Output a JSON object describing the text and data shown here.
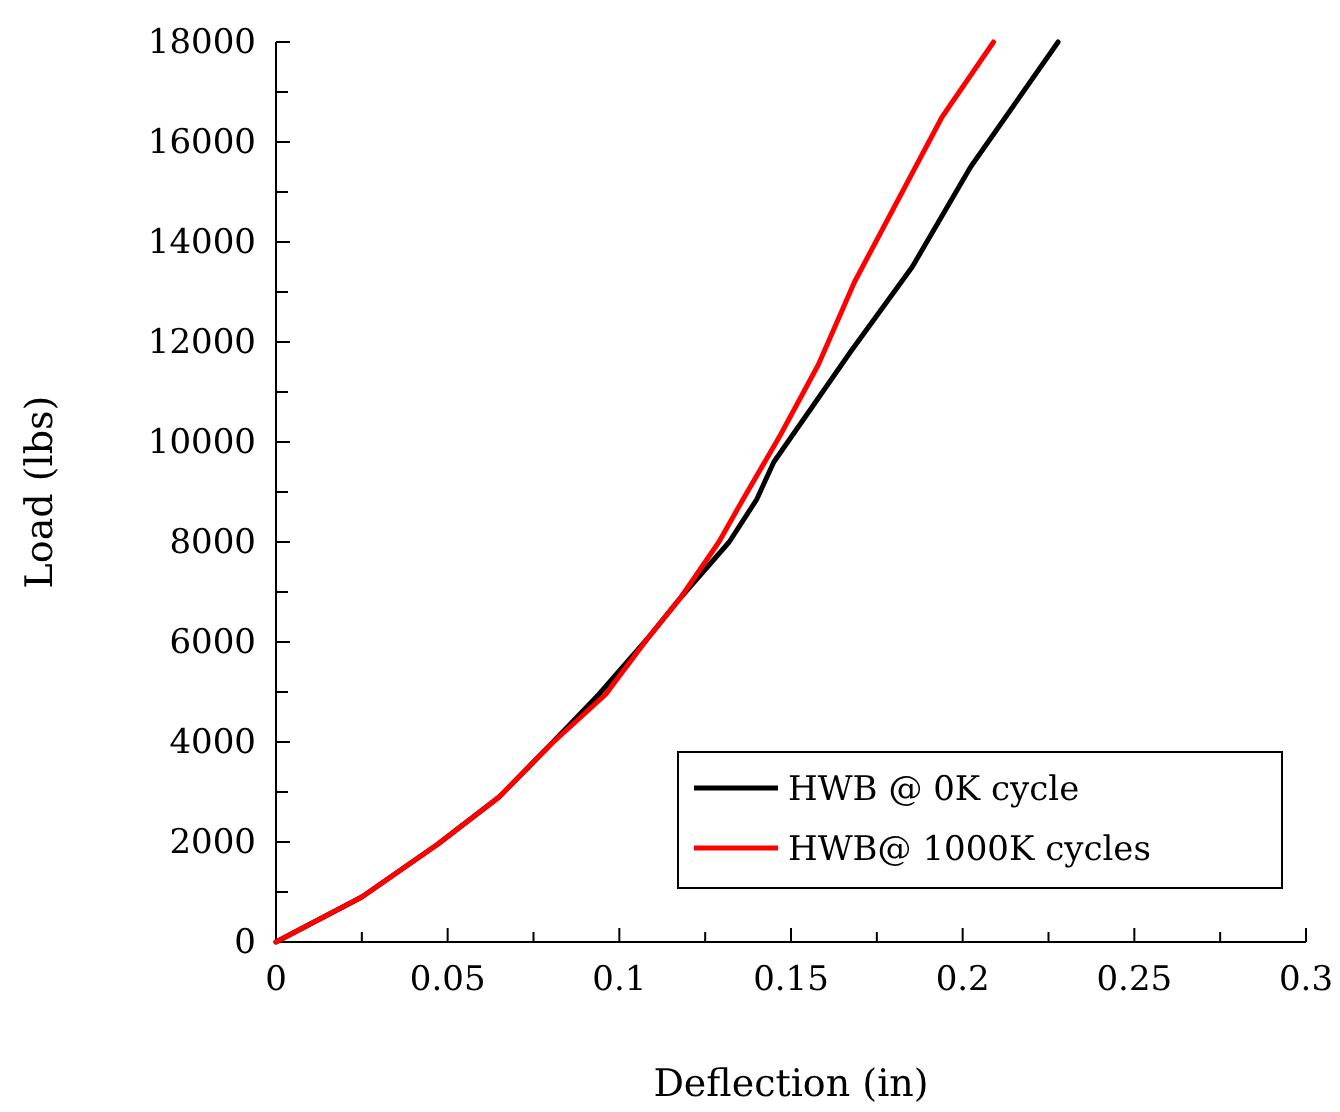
{
  "chart_data": {
    "type": "line",
    "xlabel": "Deflection (in)",
    "ylabel": "Load (lbs)",
    "xlim": [
      0,
      0.3
    ],
    "xticks": [
      0,
      0.05,
      0.1,
      0.15,
      0.2,
      0.25,
      0.3
    ],
    "ylim": [
      0,
      18000
    ],
    "yticks": [
      0,
      2000,
      4000,
      6000,
      8000,
      10000,
      12000,
      14000,
      16000,
      18000
    ],
    "legend": "bottom right",
    "grid": false,
    "marker": "none",
    "line_style": "solid",
    "series": [
      {
        "name": "HWB @ 0K cycle",
        "color": "#000000",
        "x": [
          0,
          0.025,
          0.047,
          0.065,
          0.08,
          0.094,
          0.108,
          0.118,
          0.132,
          0.14,
          0.145,
          0.1673,
          0.1853,
          0.2023,
          0.2278
        ],
        "values": [
          0,
          900,
          1950,
          2900,
          3950,
          4950,
          6050,
          6900,
          8000,
          8850,
          9600,
          11800,
          13500,
          15500,
          18000
        ]
      },
      {
        "name": "HWB@ 1000K cycles",
        "color": "#ff0000",
        "x": [
          0,
          0.025,
          0.047,
          0.065,
          0.08,
          0.096,
          0.108,
          0.118,
          0.129,
          0.136,
          0.147,
          0.158,
          0.1685,
          0.177,
          0.194,
          0.209
        ],
        "values": [
          0,
          900,
          1950,
          2900,
          3950,
          4950,
          6050,
          6900,
          8000,
          8850,
          10150,
          11550,
          13200,
          14300,
          16500,
          18000
        ]
      }
    ]
  }
}
